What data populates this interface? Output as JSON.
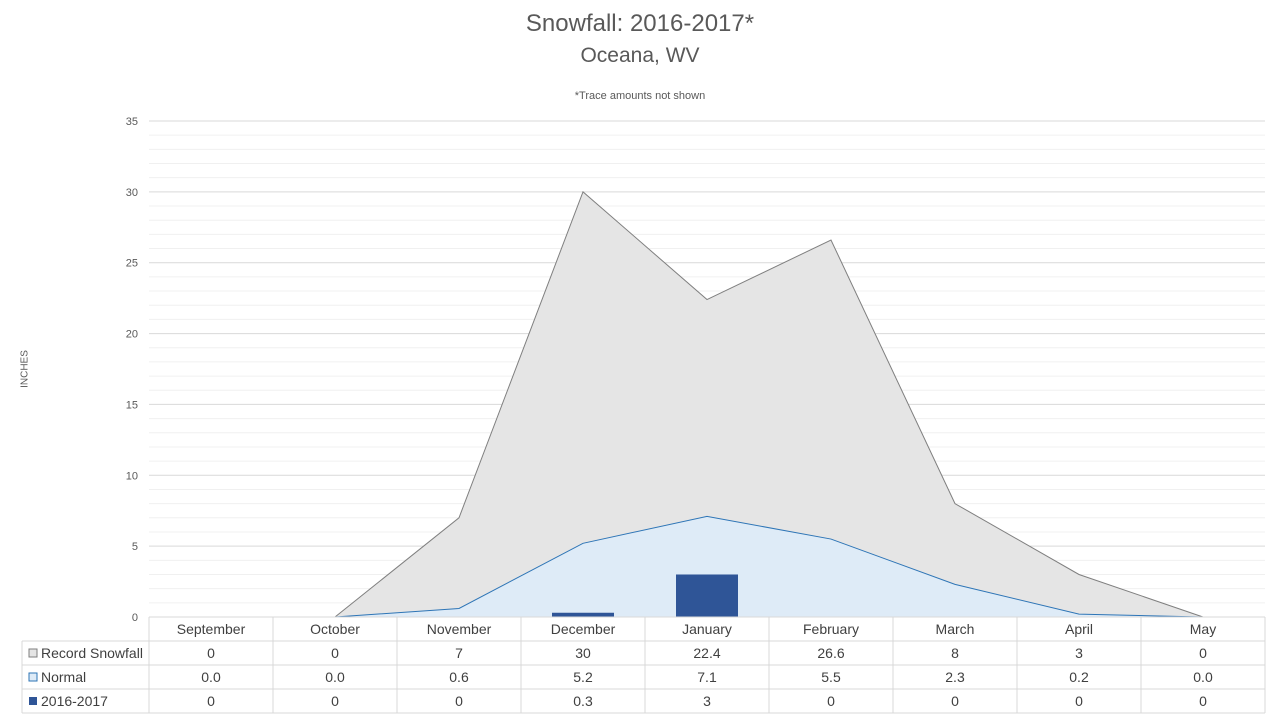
{
  "chart_data": {
    "type": "area",
    "title": "Snowfall: 2016-2017*",
    "subtitle": "Oceana, WV",
    "note": "*Trace amounts not shown",
    "ylabel": "INCHES",
    "ylim": [
      0,
      35
    ],
    "yticks": [
      0,
      5,
      10,
      15,
      20,
      25,
      30,
      35
    ],
    "categories": [
      "September",
      "October",
      "November",
      "December",
      "January",
      "February",
      "March",
      "April",
      "May"
    ],
    "series": [
      {
        "name": "Record Snowfall",
        "kind": "area",
        "color": "#e5e5e5",
        "stroke": "#7f7f7f",
        "values": [
          0,
          0,
          7,
          30,
          22.4,
          26.6,
          8,
          3,
          0
        ],
        "labels": [
          "0",
          "0",
          "7",
          "30",
          "22.4",
          "26.6",
          "8",
          "3",
          "0"
        ]
      },
      {
        "name": "Normal",
        "kind": "area",
        "color": "#deebf7",
        "stroke": "#2e75b6",
        "values": [
          0.0,
          0.0,
          0.6,
          5.2,
          7.1,
          5.5,
          2.3,
          0.2,
          0.0
        ],
        "labels": [
          "0.0",
          "0.0",
          "0.6",
          "5.2",
          "7.1",
          "5.5",
          "2.3",
          "0.2",
          "0.0"
        ]
      },
      {
        "name": "2016-2017",
        "kind": "bar",
        "color": "#2f5597",
        "values": [
          0,
          0,
          0,
          0.3,
          3,
          0,
          0,
          0,
          0
        ],
        "labels": [
          "0",
          "0",
          "0",
          "0.3",
          "3",
          "0",
          "0",
          "0",
          "0"
        ]
      }
    ],
    "grid": true,
    "legend": "data-table-left"
  }
}
